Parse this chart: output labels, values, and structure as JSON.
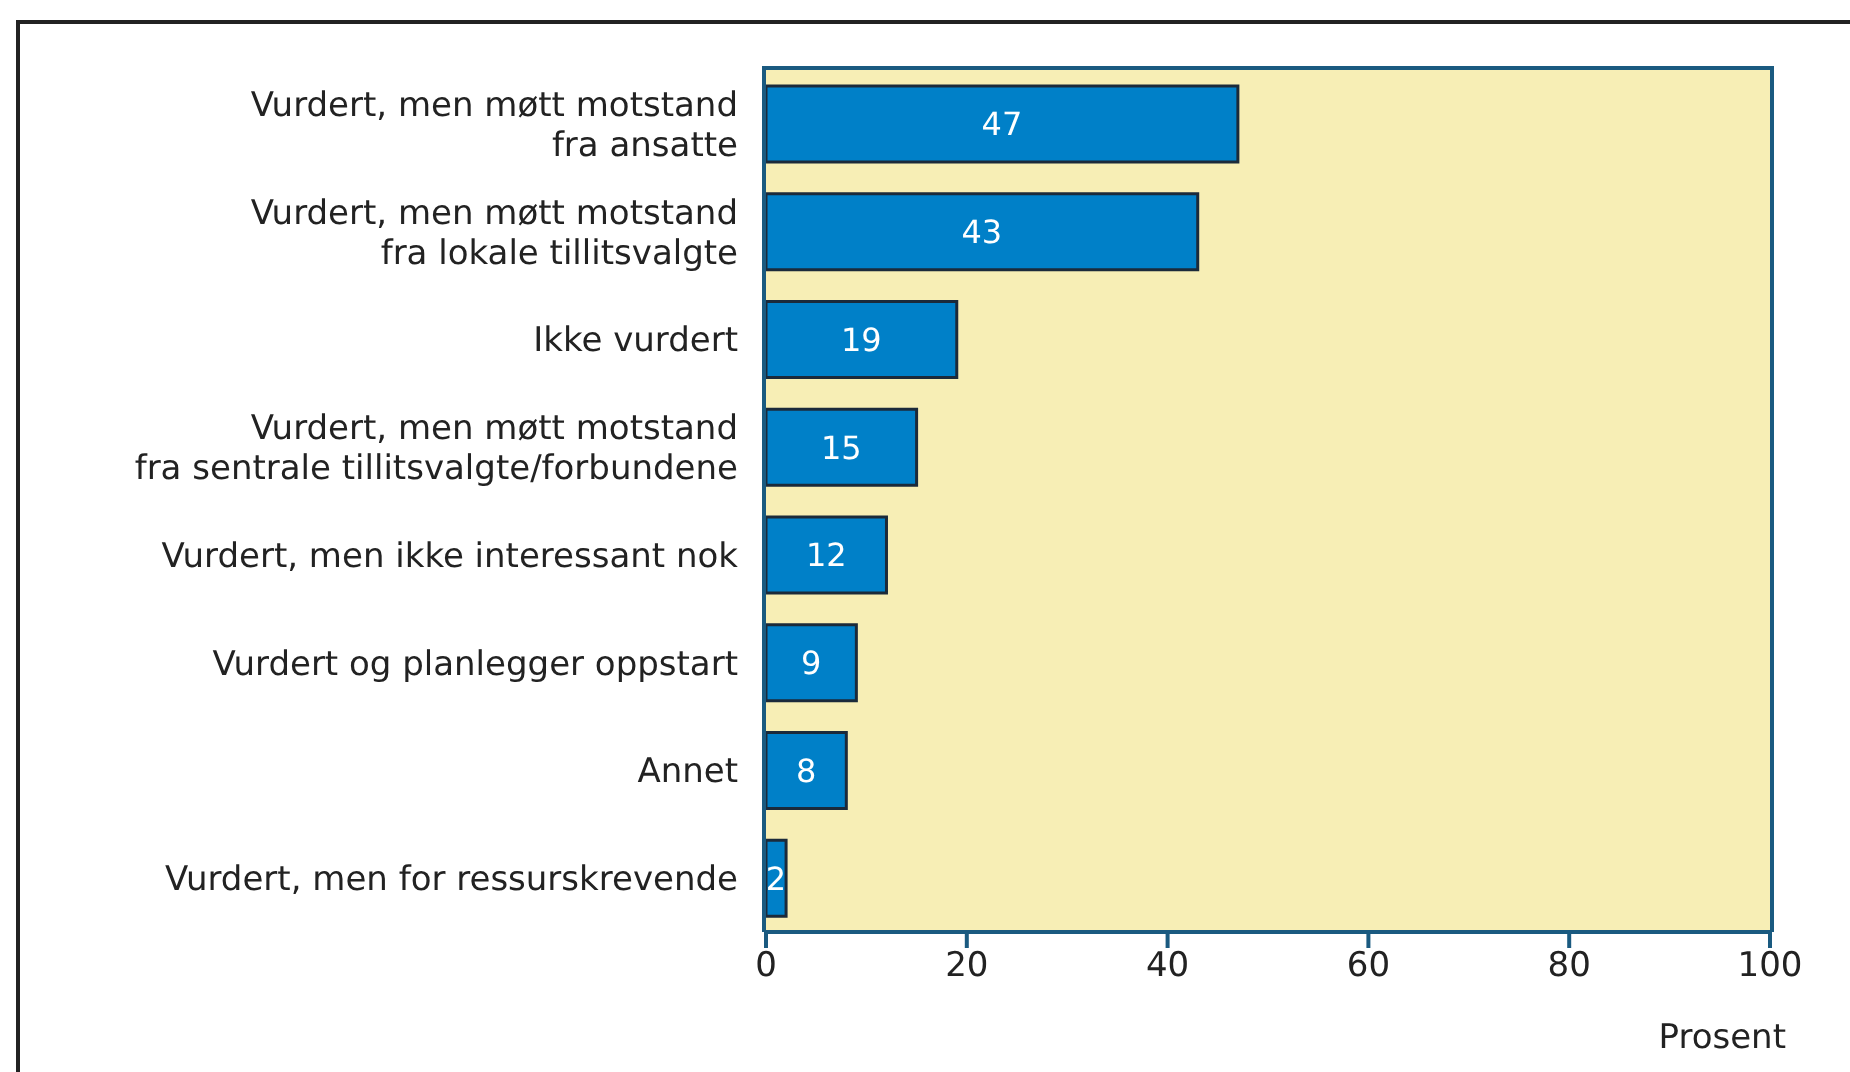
{
  "chart_data": {
    "type": "bar",
    "orientation": "horizontal",
    "categories": [
      "Vurdert, men møtt motstand\nfra ansatte",
      "Vurdert, men møtt motstand\nfra lokale tillitsvalgte",
      "Ikke vurdert",
      "Vurdert, men møtt motstand\nfra sentrale tillitsvalgte/forbundene",
      "Vurdert, men ikke interessant nok",
      "Vurdert og planlegger oppstart",
      "Annet",
      "Vurdert, men for ressurskrevende"
    ],
    "values": [
      47,
      43,
      19,
      15,
      12,
      9,
      8,
      2
    ],
    "color": "#0080c8",
    "xlim": [
      0,
      100
    ],
    "xticks": [
      0,
      20,
      40,
      60,
      80,
      100
    ],
    "xlabel": "Prosent",
    "data_labels": true
  }
}
